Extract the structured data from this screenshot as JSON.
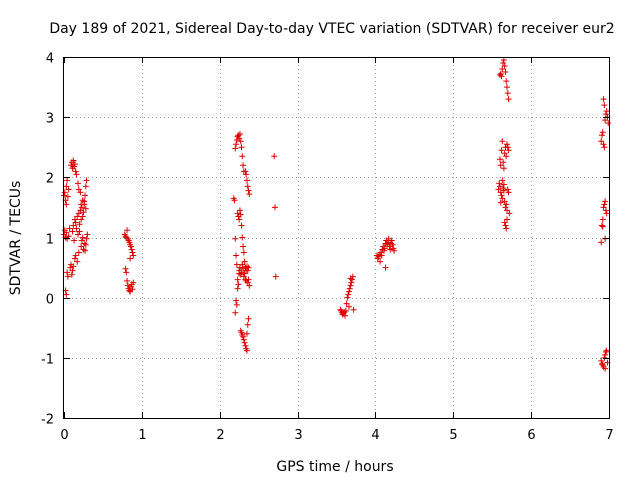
{
  "chart_data": {
    "type": "scatter",
    "title": "Day 189 of 2021, Sidereal Day-to-day VTEC variation (SDTVAR) for receiver eur2",
    "xlabel": "GPS time / hours",
    "ylabel": "SDTVAR / TECUs",
    "xlim": [
      0,
      7
    ],
    "ylim": [
      -2,
      4
    ],
    "xticks": [
      "0",
      "1",
      "2",
      "3",
      "4",
      "5",
      "6",
      "7"
    ],
    "yticks": [
      "-2",
      "-1",
      "0",
      "1",
      "2",
      "3",
      "4"
    ],
    "grid": true,
    "marker": "+",
    "color": "#e00000",
    "series": [
      {
        "name": "eur2",
        "points": [
          [
            0.0,
            1.7
          ],
          [
            0.01,
            1.75
          ],
          [
            0.02,
            1.62
          ],
          [
            0.03,
            1.55
          ],
          [
            0.03,
            1.85
          ],
          [
            0.04,
            1.95
          ],
          [
            0.05,
            1.68
          ],
          [
            0.06,
            1.8
          ],
          [
            0.02,
            0.12
          ],
          [
            0.03,
            0.05
          ],
          [
            0.04,
            0.42
          ],
          [
            0.05,
            0.35
          ],
          [
            0.0,
            1.05
          ],
          [
            0.01,
            1.12
          ],
          [
            0.02,
            1.0
          ],
          [
            0.03,
            1.08
          ],
          [
            0.04,
            0.98
          ],
          [
            0.06,
            1.02
          ],
          [
            0.07,
            1.15
          ],
          [
            0.08,
            0.5
          ],
          [
            0.09,
            0.55
          ],
          [
            0.1,
            0.38
          ],
          [
            0.11,
            0.45
          ],
          [
            0.12,
            0.52
          ],
          [
            0.09,
            2.2
          ],
          [
            0.1,
            2.25
          ],
          [
            0.11,
            2.15
          ],
          [
            0.12,
            2.28
          ],
          [
            0.13,
            2.18
          ],
          [
            0.14,
            2.22
          ],
          [
            0.15,
            2.1
          ],
          [
            0.16,
            2.05
          ],
          [
            0.11,
            1.1
          ],
          [
            0.12,
            1.2
          ],
          [
            0.13,
            0.95
          ],
          [
            0.14,
            1.3
          ],
          [
            0.15,
            1.25
          ],
          [
            0.16,
            1.15
          ],
          [
            0.17,
            1.35
          ],
          [
            0.18,
            1.05
          ],
          [
            0.19,
            1.4
          ],
          [
            0.2,
            1.22
          ],
          [
            0.21,
            1.45
          ],
          [
            0.22,
            1.3
          ],
          [
            0.14,
            0.65
          ],
          [
            0.15,
            0.7
          ],
          [
            0.17,
            0.6
          ],
          [
            0.19,
            0.75
          ],
          [
            0.18,
            1.9
          ],
          [
            0.19,
            1.8
          ],
          [
            0.21,
            1.75
          ],
          [
            0.22,
            1.55
          ],
          [
            0.23,
            1.5
          ],
          [
            0.24,
            1.62
          ],
          [
            0.25,
            1.42
          ],
          [
            0.26,
            1.55
          ],
          [
            0.27,
            1.7
          ],
          [
            0.28,
            1.85
          ],
          [
            0.29,
            1.95
          ],
          [
            0.26,
            1.6
          ],
          [
            0.22,
            0.85
          ],
          [
            0.23,
            0.95
          ],
          [
            0.24,
            1.0
          ],
          [
            0.25,
            0.8
          ],
          [
            0.26,
            0.9
          ],
          [
            0.27,
            0.78
          ],
          [
            0.28,
            0.88
          ],
          [
            0.29,
            0.98
          ],
          [
            0.3,
            1.05
          ],
          [
            0.2,
            1.1
          ],
          [
            0.24,
            1.35
          ],
          [
            0.28,
            1.48
          ],
          [
            0.78,
            1.05
          ],
          [
            0.79,
            1.02
          ],
          [
            0.8,
            1.0
          ],
          [
            0.81,
            1.12
          ],
          [
            0.82,
            0.98
          ],
          [
            0.83,
            0.95
          ],
          [
            0.84,
            0.92
          ],
          [
            0.85,
            0.88
          ],
          [
            0.86,
            0.85
          ],
          [
            0.87,
            0.8
          ],
          [
            0.88,
            0.75
          ],
          [
            0.89,
            0.7
          ],
          [
            0.79,
            0.48
          ],
          [
            0.8,
            0.42
          ],
          [
            0.81,
            0.28
          ],
          [
            0.82,
            0.2
          ],
          [
            0.83,
            0.15
          ],
          [
            0.84,
            0.12
          ],
          [
            0.85,
            0.1
          ],
          [
            0.86,
            0.18
          ],
          [
            0.87,
            0.22
          ],
          [
            0.88,
            0.14
          ],
          [
            0.89,
            0.25
          ],
          [
            0.85,
            0.65
          ],
          [
            2.18,
            1.65
          ],
          [
            2.19,
            1.62
          ],
          [
            2.2,
            0.98
          ],
          [
            2.21,
            0.7
          ],
          [
            2.22,
            0.55
          ],
          [
            2.23,
            0.3
          ],
          [
            2.24,
            0.22
          ],
          [
            2.25,
            0.4
          ],
          [
            2.2,
            -0.25
          ],
          [
            2.21,
            -0.05
          ],
          [
            2.22,
            -0.12
          ],
          [
            2.23,
            0.15
          ],
          [
            2.2,
            2.48
          ],
          [
            2.21,
            2.55
          ],
          [
            2.22,
            2.62
          ],
          [
            2.23,
            2.68
          ],
          [
            2.24,
            2.7
          ],
          [
            2.25,
            2.65
          ],
          [
            2.26,
            2.72
          ],
          [
            2.27,
            2.6
          ],
          [
            2.28,
            2.5
          ],
          [
            2.29,
            2.35
          ],
          [
            2.3,
            2.2
          ],
          [
            2.31,
            2.1
          ],
          [
            2.23,
            1.4
          ],
          [
            2.24,
            1.35
          ],
          [
            2.25,
            1.3
          ],
          [
            2.26,
            1.45
          ],
          [
            2.27,
            1.38
          ],
          [
            2.28,
            1.2
          ],
          [
            2.29,
            1.0
          ],
          [
            2.3,
            0.85
          ],
          [
            2.31,
            0.75
          ],
          [
            2.32,
            0.6
          ],
          [
            2.33,
            0.5
          ],
          [
            2.34,
            0.45
          ],
          [
            2.25,
            0.45
          ],
          [
            2.26,
            0.5
          ],
          [
            2.27,
            0.38
          ],
          [
            2.28,
            0.42
          ],
          [
            2.29,
            0.55
          ],
          [
            2.3,
            0.48
          ],
          [
            2.31,
            0.35
          ],
          [
            2.32,
            0.4
          ],
          [
            2.33,
            0.3
          ],
          [
            2.34,
            0.28
          ],
          [
            2.35,
            0.52
          ],
          [
            2.36,
            0.45
          ],
          [
            2.27,
            -0.55
          ],
          [
            2.28,
            -0.58
          ],
          [
            2.29,
            -0.62
          ],
          [
            2.3,
            -0.65
          ],
          [
            2.31,
            -0.7
          ],
          [
            2.32,
            -0.75
          ],
          [
            2.33,
            -0.8
          ],
          [
            2.34,
            -0.85
          ],
          [
            2.35,
            -0.6
          ],
          [
            2.36,
            -0.45
          ],
          [
            2.37,
            -0.35
          ],
          [
            2.35,
            -0.88
          ],
          [
            2.33,
            2.1
          ],
          [
            2.34,
            2.05
          ],
          [
            2.35,
            1.95
          ],
          [
            2.36,
            1.85
          ],
          [
            2.37,
            1.78
          ],
          [
            2.38,
            1.72
          ],
          [
            2.36,
            0.25
          ],
          [
            2.37,
            0.3
          ],
          [
            2.38,
            0.2
          ],
          [
            2.37,
            0.5
          ],
          [
            2.7,
            2.35
          ],
          [
            2.71,
            1.5
          ],
          [
            2.72,
            0.35
          ],
          [
            3.55,
            -0.2
          ],
          [
            3.56,
            -0.22
          ],
          [
            3.57,
            -0.25
          ],
          [
            3.58,
            -0.28
          ],
          [
            3.59,
            -0.26
          ],
          [
            3.6,
            -0.24
          ],
          [
            3.61,
            -0.3
          ],
          [
            3.62,
            -0.22
          ],
          [
            3.63,
            -0.1
          ],
          [
            3.64,
            0.0
          ],
          [
            3.65,
            0.05
          ],
          [
            3.66,
            0.1
          ],
          [
            3.67,
            0.15
          ],
          [
            3.68,
            0.2
          ],
          [
            3.69,
            0.25
          ],
          [
            3.7,
            0.3
          ],
          [
            3.71,
            0.35
          ],
          [
            3.72,
            -0.2
          ],
          [
            3.68,
            0.32
          ],
          [
            3.66,
            -0.15
          ],
          [
            4.02,
            0.7
          ],
          [
            4.03,
            0.65
          ],
          [
            4.04,
            0.68
          ],
          [
            4.05,
            0.72
          ],
          [
            4.06,
            0.6
          ],
          [
            4.07,
            0.75
          ],
          [
            4.08,
            0.7
          ],
          [
            4.09,
            0.8
          ],
          [
            4.1,
            0.85
          ],
          [
            4.11,
            0.78
          ],
          [
            4.12,
            0.82
          ],
          [
            4.13,
            0.9
          ],
          [
            4.14,
            0.95
          ],
          [
            4.15,
            0.88
          ],
          [
            4.16,
            0.92
          ],
          [
            4.17,
            0.98
          ],
          [
            4.18,
            0.85
          ],
          [
            4.19,
            0.8
          ],
          [
            4.2,
            0.9
          ],
          [
            4.21,
            0.95
          ],
          [
            4.22,
            0.88
          ],
          [
            4.23,
            0.82
          ],
          [
            4.24,
            0.78
          ],
          [
            4.13,
            0.5
          ],
          [
            5.58,
            1.8
          ],
          [
            5.59,
            1.9
          ],
          [
            5.6,
            1.85
          ],
          [
            5.61,
            1.75
          ],
          [
            5.62,
            1.7
          ],
          [
            5.63,
            1.95
          ],
          [
            5.64,
            1.82
          ],
          [
            5.65,
            1.78
          ],
          [
            5.66,
            1.6
          ],
          [
            5.67,
            1.5
          ],
          [
            5.68,
            1.55
          ],
          [
            5.69,
            1.45
          ],
          [
            5.6,
            2.3
          ],
          [
            5.61,
            2.2
          ],
          [
            5.62,
            2.45
          ],
          [
            5.63,
            2.6
          ],
          [
            5.64,
            2.25
          ],
          [
            5.65,
            2.15
          ],
          [
            5.66,
            2.4
          ],
          [
            5.67,
            2.5
          ],
          [
            5.68,
            2.35
          ],
          [
            5.69,
            2.55
          ],
          [
            5.7,
            2.5
          ],
          [
            5.71,
            2.45
          ],
          [
            5.6,
            3.7
          ],
          [
            5.61,
            3.72
          ],
          [
            5.62,
            3.68
          ],
          [
            5.63,
            3.8
          ],
          [
            5.64,
            3.9
          ],
          [
            5.65,
            3.95
          ],
          [
            5.66,
            3.85
          ],
          [
            5.67,
            3.75
          ],
          [
            5.68,
            3.6
          ],
          [
            5.69,
            3.5
          ],
          [
            5.7,
            3.4
          ],
          [
            5.71,
            3.3
          ],
          [
            5.66,
            1.25
          ],
          [
            5.67,
            1.2
          ],
          [
            5.68,
            1.15
          ],
          [
            5.69,
            1.3
          ],
          [
            5.7,
            1.8
          ],
          [
            5.71,
            1.75
          ],
          [
            5.72,
            1.4
          ],
          [
            5.65,
            1.88
          ],
          [
            5.63,
            1.65
          ],
          [
            5.61,
            1.58
          ],
          [
            6.9,
            0.92
          ],
          [
            6.91,
            1.2
          ],
          [
            6.92,
            1.3
          ],
          [
            6.93,
            1.5
          ],
          [
            6.94,
            1.55
          ],
          [
            6.95,
            1.6
          ],
          [
            6.96,
            1.45
          ],
          [
            6.97,
            1.4
          ],
          [
            6.92,
            1.18
          ],
          [
            6.95,
            0.98
          ],
          [
            6.9,
            2.6
          ],
          [
            6.91,
            2.7
          ],
          [
            6.92,
            2.75
          ],
          [
            6.93,
            2.55
          ],
          [
            6.94,
            2.5
          ],
          [
            6.95,
            2.95
          ],
          [
            6.96,
            3.05
          ],
          [
            6.97,
            3.1
          ],
          [
            6.98,
            3.0
          ],
          [
            6.99,
            2.9
          ],
          [
            6.93,
            3.3
          ],
          [
            6.94,
            3.2
          ],
          [
            6.9,
            -1.05
          ],
          [
            6.91,
            -1.1
          ],
          [
            6.92,
            -1.12
          ],
          [
            6.93,
            -1.15
          ],
          [
            6.94,
            -1.0
          ],
          [
            6.95,
            -0.95
          ],
          [
            6.96,
            -0.9
          ],
          [
            6.97,
            -0.88
          ],
          [
            6.98,
            -1.08
          ],
          [
            6.95,
            -1.18
          ]
        ]
      }
    ]
  }
}
